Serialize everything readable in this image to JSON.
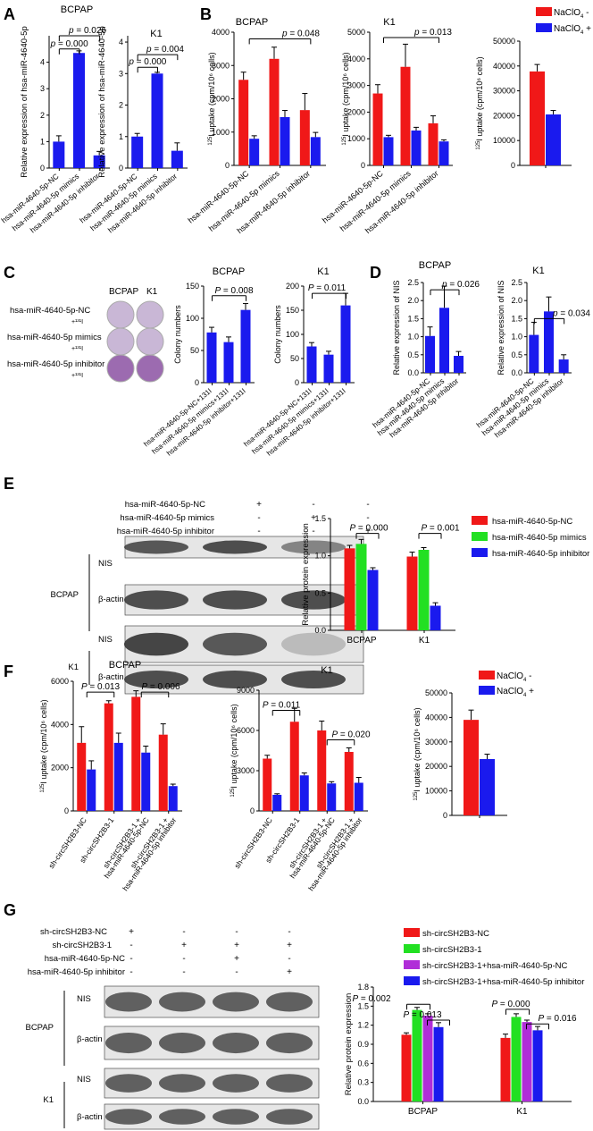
{
  "panel_letters": [
    "A",
    "B",
    "C",
    "D",
    "E",
    "F",
    "G"
  ],
  "colors": {
    "red": "#f01818",
    "blue": "#1a1aee",
    "green": "#22e022",
    "purple": "#b02ed8",
    "axis": "#000000"
  },
  "labels": {
    "mir_nc": "hsa-miR-4640-5p-NC",
    "mir_mimics": "hsa-miR-4640-5p mimics",
    "mir_inhibitor": "hsa-miR-4640-5p inhibitor",
    "sh_nc": "sh-circSH2B3-NC",
    "sh_1": "sh-circSH2B3-1",
    "sh_1_nc": "sh-circSH2B3-1 +",
    "sh_1_nc_2": "hsa-miR-4640-5p-NC",
    "sh_1_inh": "sh-circSH2B3-1 +",
    "sh_1_inh_2": "hsa-miR-4640-5p inhibitor",
    "naclo_minus": "NaClO",
    "naclo_plus": "NaClO",
    "nis": "NIS",
    "actin": "β-actin",
    "bcpap": "BCPAP",
    "k1": "K1",
    "rel_expr_mir": "Relative expression of hsa-miR-4640-5p",
    "uptake": "uptake (cpm/10⁶ cells)",
    "uptake_sup": "125I",
    "colony": "Colony numbers",
    "rel_nis": "Relative expression of NIS",
    "rel_nis2": "Relative  expression of NIS",
    "rel_protein": "Relative protein expression",
    "c_row1": "hsa-miR-4640-5p-NC",
    "c_row2": "hsa-miR-4640-5p mimics",
    "c_row3": "hsa-miR-4640-5p inhibitor",
    "c_i131": "+¹³¹I",
    "c_x1": "hsa-miR-4640-5p-NC+¹³¹I",
    "c_x2": "hsa-miR-4640-5p mimics+¹³¹I",
    "c_x3": "hsa-miR-4640-5p inhibitor+¹³¹I",
    "e_legend": [
      "hsa-miR-4640-5p-NC",
      "hsa-miR-4640-5p mimics",
      "hsa-miR-4640-5p inhibitor"
    ],
    "g_legend": [
      "sh-circSH2B3-NC",
      "sh-circSH2B3-1",
      "sh-circSH2B3-1+hsa-miR-4640-5p-NC",
      "sh-circSH2B3-1+hsa-miR-4640-5p inhibitor"
    ],
    "e_rows": [
      {
        "label": "hsa-miR-4640-5p-NC",
        "signs": [
          "+",
          "-",
          "-"
        ]
      },
      {
        "label": "hsa-miR-4640-5p mimics",
        "signs": [
          "-",
          "+",
          "-"
        ]
      },
      {
        "label": "hsa-miR-4640-5p inhibitor",
        "signs": [
          "-",
          "-",
          "+"
        ]
      }
    ],
    "g_rows": [
      {
        "label": "sh-circSH2B3-NC",
        "signs": [
          "+",
          "-",
          "-",
          "-"
        ]
      },
      {
        "label": "sh-circSH2B3-1",
        "signs": [
          "-",
          "+",
          "+",
          "+"
        ]
      },
      {
        "label": "hsa-miR-4640-5p-NC",
        "signs": [
          "-",
          "-",
          "+",
          "-"
        ]
      },
      {
        "label": "hsa-miR-4640-5p inhibitor",
        "signs": [
          "-",
          "-",
          "-",
          "+"
        ]
      }
    ]
  },
  "chart_data": [
    {
      "id": "A1",
      "type": "bar",
      "title": "BCPAP",
      "ylabel": "Relative expression of hsa-miR-4640-5p",
      "ylim": [
        0,
        5
      ],
      "yticks": [
        0,
        1,
        2,
        3,
        4
      ],
      "categories": [
        "hsa-miR-4640-5p-NC",
        "hsa-miR-4640-5p mimics",
        "hsa-miR-4640-5p inhibitor"
      ],
      "values": [
        1.0,
        4.35,
        0.48
      ],
      "errors": [
        0.22,
        0.08,
        0.15
      ],
      "colors": [
        "blue",
        "blue",
        "blue"
      ],
      "annotations": [
        "p = 0.000",
        "p = 0.026"
      ]
    },
    {
      "id": "A2",
      "type": "bar",
      "title": "K1",
      "ylabel": "Relative expression of hsa-miR-4640-5p",
      "ylim": [
        0,
        4.2
      ],
      "yticks": [
        0,
        1,
        2,
        3,
        4
      ],
      "categories": [
        "hsa-miR-4640-5p-NC",
        "hsa-miR-4640-5p mimics",
        "hsa-miR-4640-5p inhibitor"
      ],
      "values": [
        1.0,
        3.0,
        0.55
      ],
      "errors": [
        0.1,
        0.04,
        0.25
      ],
      "colors": [
        "blue",
        "blue",
        "blue"
      ],
      "annotations": [
        "p = 0.000",
        "p = 0.004"
      ]
    },
    {
      "id": "B1",
      "type": "bar",
      "title": "BCPAP",
      "ylim": [
        0,
        4000
      ],
      "yticks": [
        0,
        1000,
        2000,
        3000,
        4000
      ],
      "categories": [
        "hsa-miR-4640-5p-NC",
        "hsa-miR-4640-5p mimics",
        "hsa-miR-4640-5p inhibitor"
      ],
      "series": [
        {
          "name": "NaClO4 -",
          "values": [
            2570,
            3200,
            1660
          ],
          "errors": [
            230,
            350,
            500
          ]
        },
        {
          "name": "NaClO4 +",
          "values": [
            800,
            1450,
            850
          ],
          "errors": [
            90,
            200,
            140
          ]
        }
      ],
      "annotations": [
        "p = 0.048"
      ]
    },
    {
      "id": "B2",
      "type": "bar",
      "title": "K1",
      "ylim": [
        0,
        5000
      ],
      "yticks": [
        0,
        1000,
        2000,
        3000,
        4000,
        5000
      ],
      "categories": [
        "hsa-miR-4640-5p-NC",
        "hsa-miR-4640-5p mimics",
        "hsa-miR-4640-5p inhibitor"
      ],
      "series": [
        {
          "name": "NaClO4 -",
          "values": [
            2700,
            3700,
            1580
          ],
          "errors": [
            330,
            850,
            280
          ]
        },
        {
          "name": "NaClO4 +",
          "values": [
            1060,
            1310,
            900
          ],
          "errors": [
            70,
            120,
            60
          ]
        }
      ],
      "annotations": [
        "p = 0.013"
      ]
    },
    {
      "id": "B3",
      "type": "bar",
      "ylim": [
        0,
        50000
      ],
      "yticks": [
        0,
        10000,
        20000,
        30000,
        40000,
        50000
      ],
      "series": [
        {
          "name": "NaClO4 -",
          "values": [
            37800
          ],
          "errors": [
            2800
          ]
        },
        {
          "name": "NaClO4 +",
          "values": [
            20500
          ],
          "errors": [
            1600
          ]
        }
      ]
    },
    {
      "id": "C1",
      "type": "bar",
      "title": "BCPAP",
      "ylabel": "Colony numbers",
      "ylim": [
        0,
        150
      ],
      "yticks": [
        0,
        50,
        100,
        150
      ],
      "categories": [
        "hsa-miR-4640-5p-NC+131I",
        "hsa-miR-4640-5p mimics+131I",
        "hsa-miR-4640-5p inhibitor+131I"
      ],
      "values": [
        78,
        63,
        113
      ],
      "errors": [
        8,
        8,
        10
      ],
      "colors": [
        "blue",
        "blue",
        "blue"
      ],
      "annotations": [
        "P = 0.008"
      ]
    },
    {
      "id": "C2",
      "type": "bar",
      "title": "K1",
      "ylabel": "Colony numbers",
      "ylim": [
        0,
        200
      ],
      "yticks": [
        0,
        50,
        100,
        150,
        200
      ],
      "categories": [
        "hsa-miR-4640-5p-NC+131I",
        "hsa-miR-4640-5p mimics+131I",
        "hsa-miR-4640-5p inhibitor+131I"
      ],
      "values": [
        75,
        58,
        160
      ],
      "errors": [
        8,
        7,
        25
      ],
      "colors": [
        "blue",
        "blue",
        "blue"
      ],
      "annotations": [
        "P = 0.011"
      ]
    },
    {
      "id": "D1",
      "type": "bar",
      "title": "BCPAP",
      "ylabel": "Relative  expression of NIS",
      "ylim": [
        0,
        2.5
      ],
      "yticks": [
        0,
        0.5,
        1.0,
        1.5,
        2.0,
        2.5
      ],
      "categories": [
        "hsa-miR-4640-5p-NC",
        "hsa-miR-4640-5p mimics",
        "hsa-miR-4640-5p inhibitor"
      ],
      "values": [
        1.02,
        1.8,
        0.47
      ],
      "errors": [
        0.25,
        0.6,
        0.12
      ],
      "colors": [
        "blue",
        "blue",
        "blue"
      ],
      "annotations": [
        "p = 0.026"
      ]
    },
    {
      "id": "D2",
      "type": "bar",
      "title": "K1",
      "ylabel": "Relative expression of NIS",
      "ylim": [
        0,
        2.5
      ],
      "yticks": [
        0,
        0.5,
        1.0,
        1.5,
        2.0,
        2.5
      ],
      "categories": [
        "hsa-miR-4640-5p-NC",
        "hsa-miR-4640-5p mimics",
        "hsa-miR-4640-5p inhibitor"
      ],
      "values": [
        1.05,
        1.7,
        0.37
      ],
      "errors": [
        0.35,
        0.4,
        0.13
      ],
      "colors": [
        "blue",
        "blue",
        "blue"
      ],
      "annotations": [
        "p = 0.034"
      ]
    },
    {
      "id": "E",
      "type": "bar",
      "ylabel": "Relative protein expression",
      "ylim": [
        0,
        1.5
      ],
      "yticks": [
        0,
        0.5,
        1.0,
        1.5
      ],
      "categories": [
        "BCPAP",
        "K1"
      ],
      "series": [
        {
          "name": "hsa-miR-4640-5p-NC",
          "values": [
            1.1,
            0.99
          ],
          "errors": [
            0.04,
            0.06
          ]
        },
        {
          "name": "hsa-miR-4640-5p mimics",
          "values": [
            1.16,
            1.08
          ],
          "errors": [
            0.06,
            0.03
          ]
        },
        {
          "name": "hsa-miR-4640-5p inhibitor",
          "values": [
            0.81,
            0.33
          ],
          "errors": [
            0.03,
            0.04
          ]
        }
      ],
      "annotations": [
        "P = 0.000",
        "P = 0.001"
      ]
    },
    {
      "id": "F1",
      "type": "bar",
      "title": "BCPAP",
      "ylim": [
        0,
        6000
      ],
      "yticks": [
        0,
        2000,
        4000,
        6000
      ],
      "categories": [
        "sh-circSH2B3-NC",
        "sh-circSH2B3-1",
        "sh-circSH2B3-1 + hsa-miR-4640-5p-NC",
        "sh-circSH2B3-1 + hsa-miR-4640-5p inhibitor"
      ],
      "series": [
        {
          "name": "NaClO4 -",
          "values": [
            3150,
            4980,
            5280,
            3530
          ],
          "errors": [
            750,
            120,
            280,
            500
          ]
        },
        {
          "name": "NaClO4 +",
          "values": [
            1920,
            3150,
            2700,
            1150
          ],
          "errors": [
            400,
            450,
            300,
            90
          ]
        }
      ],
      "annotations": [
        "P = 0.013",
        "P = 0.006"
      ]
    },
    {
      "id": "F2",
      "type": "bar",
      "title": "K1",
      "ylim": [
        0,
        9000
      ],
      "yticks": [
        0,
        3000,
        6000,
        9000
      ],
      "categories": [
        "sh-circSH2B3-NC",
        "sh-circSH2B3-1",
        "sh-circSH2B3-1 + hsa-miR-4640-5p-NC",
        "sh-circSH2B3-1 + hsa-miR-4640-5p inhibitor"
      ],
      "series": [
        {
          "name": "NaClO4 -",
          "values": [
            3900,
            6650,
            6000,
            4400
          ],
          "errors": [
            250,
            1000,
            700,
            300
          ]
        },
        {
          "name": "NaClO4 +",
          "values": [
            1200,
            2650,
            2050,
            2100
          ],
          "errors": [
            80,
            180,
            130,
            400
          ]
        }
      ],
      "annotations": [
        "P = 0.011",
        "P = 0.020"
      ]
    },
    {
      "id": "F3",
      "type": "bar",
      "ylim": [
        0,
        50000
      ],
      "yticks": [
        0,
        10000,
        20000,
        30000,
        40000,
        50000
      ],
      "series": [
        {
          "name": "NaClO4 -",
          "values": [
            39000
          ],
          "errors": [
            4000
          ]
        },
        {
          "name": "NaClO4 +",
          "values": [
            23000
          ],
          "errors": [
            2000
          ]
        }
      ]
    },
    {
      "id": "G",
      "type": "bar",
      "ylabel": "Relative protein expression",
      "ylim": [
        0,
        1.8
      ],
      "yticks": [
        0.0,
        0.3,
        0.6,
        0.9,
        1.2,
        1.5,
        1.8
      ],
      "categories": [
        "BCPAP",
        "K1"
      ],
      "series": [
        {
          "name": "sh-circSH2B3-NC",
          "values": [
            1.05,
            1.0
          ],
          "errors": [
            0.03,
            0.06
          ]
        },
        {
          "name": "sh-circSH2B3-1",
          "values": [
            1.44,
            1.33
          ],
          "errors": [
            0.04,
            0.05
          ]
        },
        {
          "name": "sh-circSH2B3-1+hsa-miR-4640-5p-NC",
          "values": [
            1.35,
            1.25
          ],
          "errors": [
            0.03,
            0.03
          ]
        },
        {
          "name": "sh-circSH2B3-1+hsa-miR-4640-5p inhibitor",
          "values": [
            1.17,
            1.12
          ],
          "errors": [
            0.07,
            0.06
          ]
        }
      ],
      "annotations": [
        "P = 0.002",
        "P = 0.013",
        "P = 0.000",
        "P = 0.016"
      ]
    }
  ]
}
